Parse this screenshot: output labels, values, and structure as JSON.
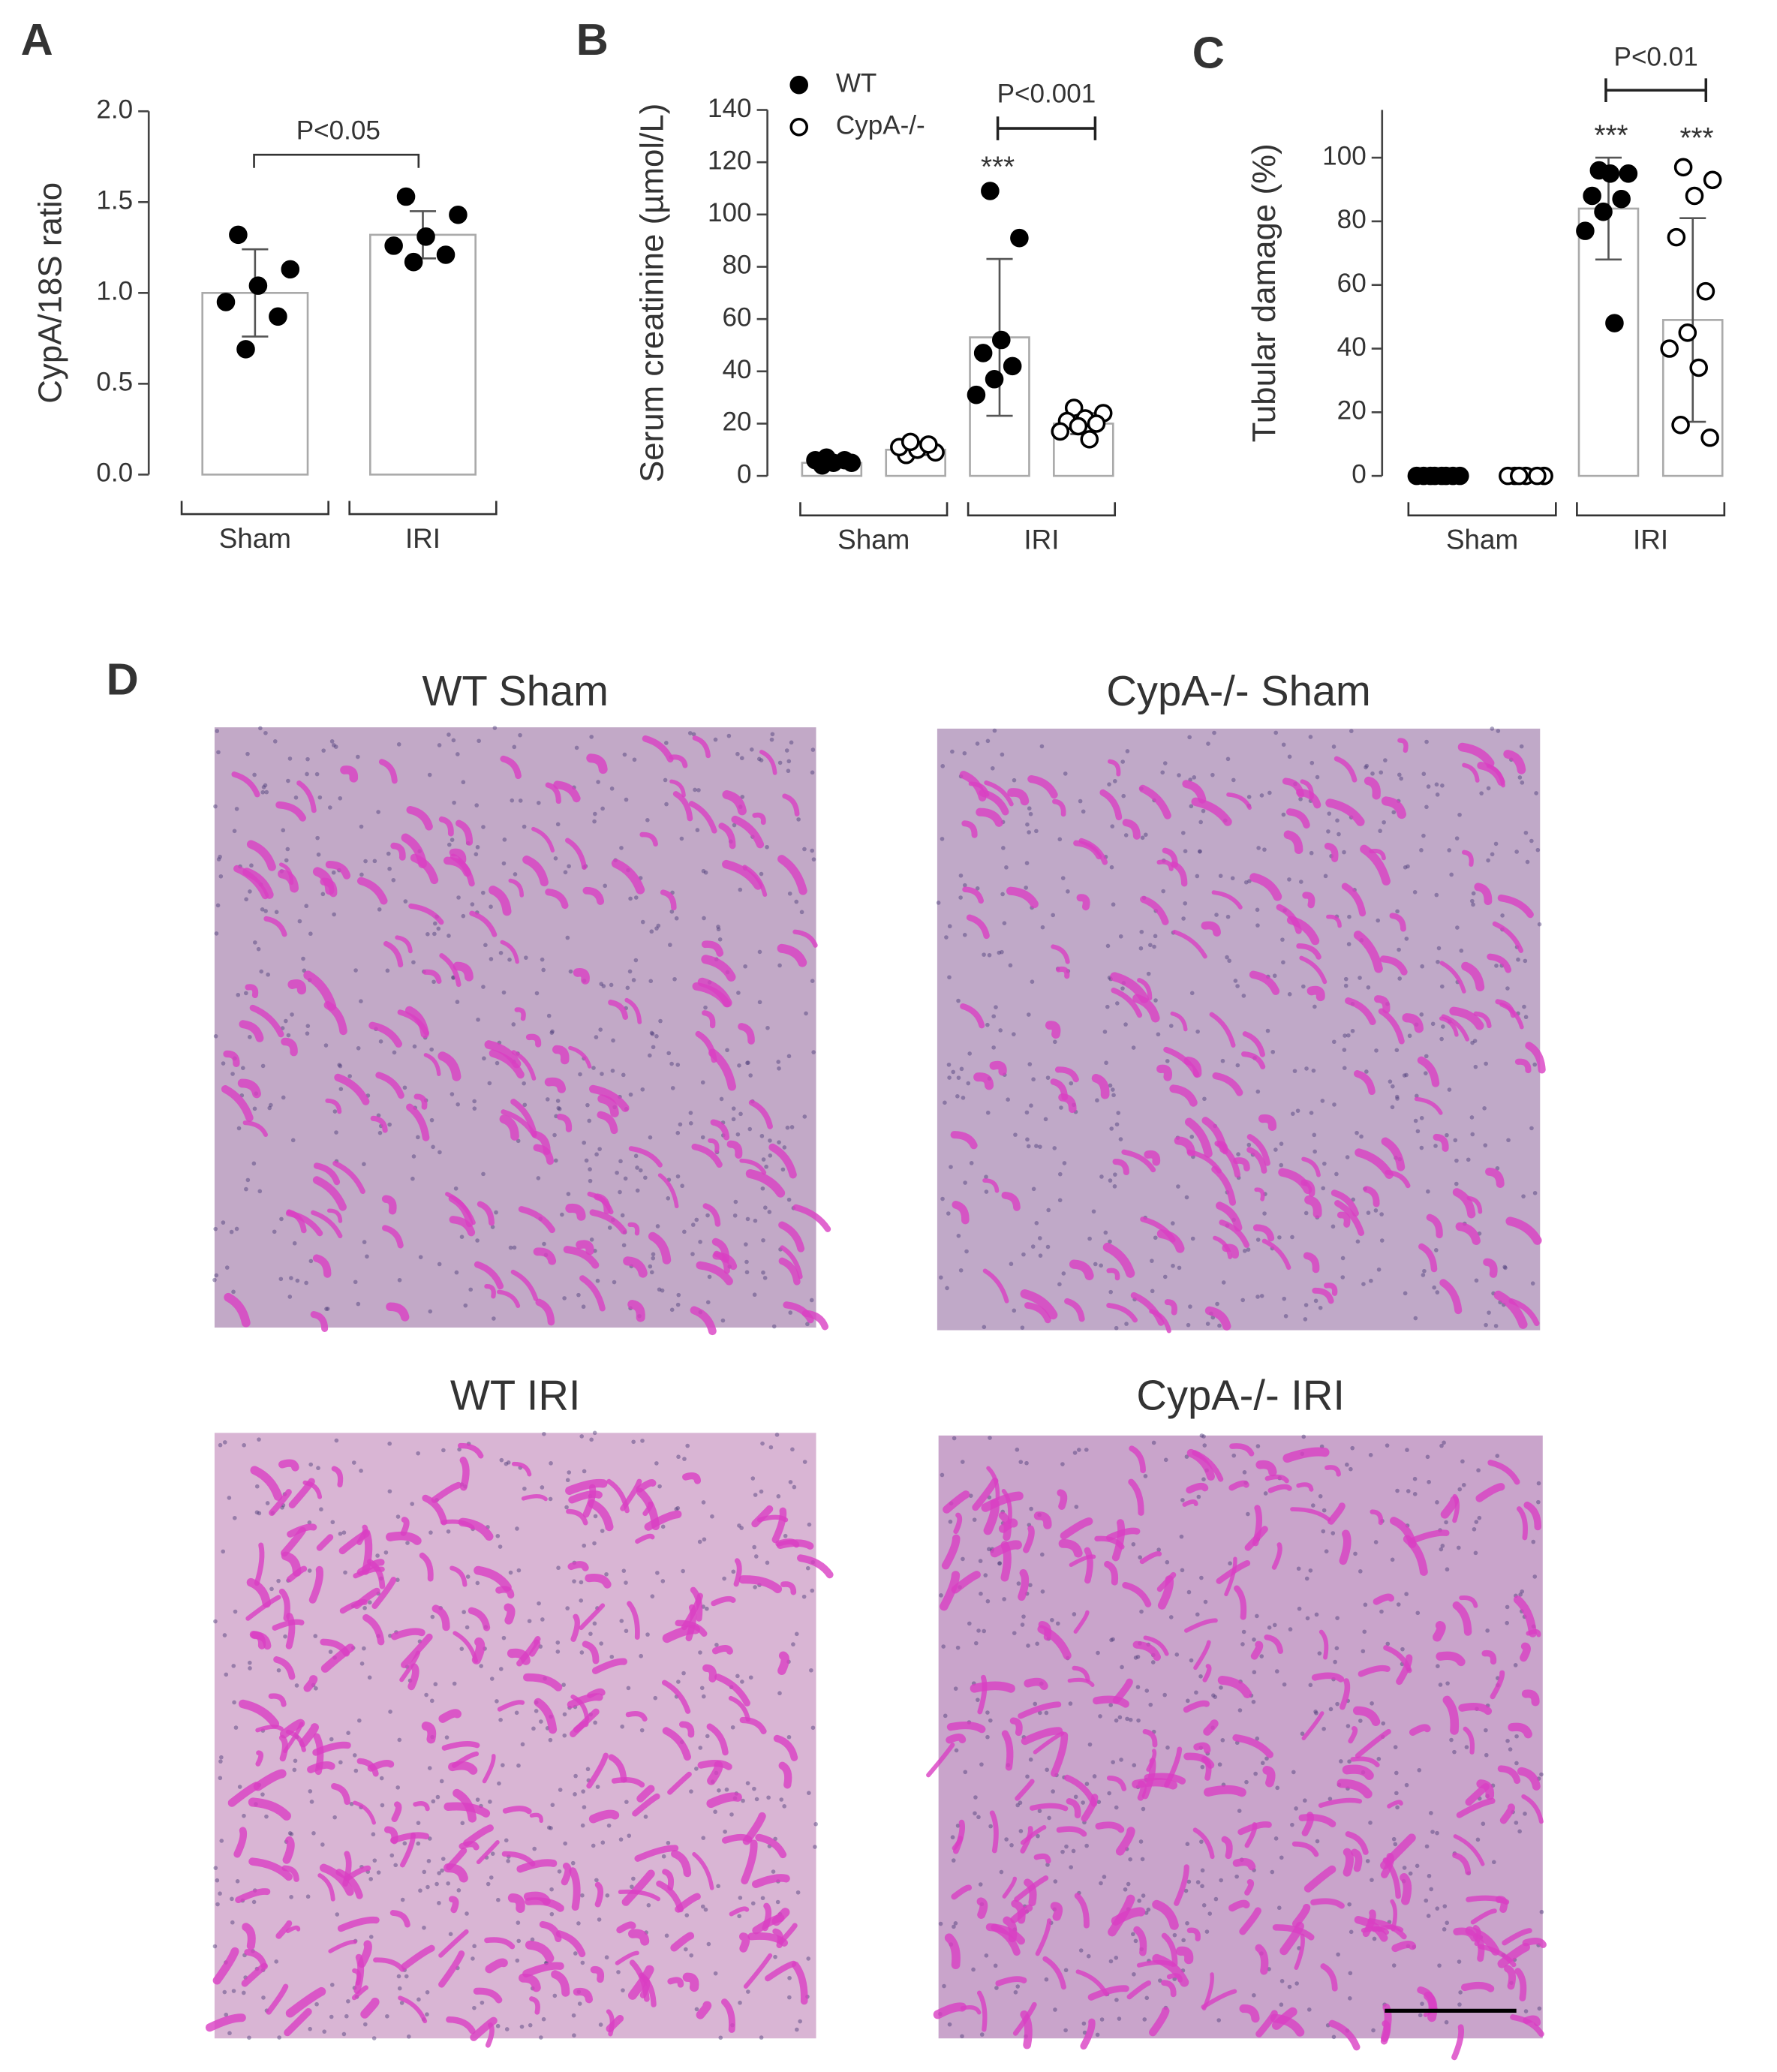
{
  "chart_data": [
    {
      "type": "bar",
      "panel": "A",
      "ylabel": "CypA/18S ratio",
      "categories": [
        "Sham",
        "IRI"
      ],
      "series": [
        {
          "color": "#000000",
          "marker": "filled",
          "values": [
            1.0,
            1.32
          ],
          "errors": [
            0.24,
            0.13
          ],
          "points": [
            [
              1.32,
              1.13,
              1.04,
              0.95,
              0.87,
              0.69
            ],
            [
              1.53,
              1.43,
              1.31,
              1.26,
              1.21,
              1.17
            ]
          ]
        }
      ],
      "ylim": [
        0,
        2.0
      ],
      "yticks": [
        {
          "value": 0,
          "label": "0.0"
        },
        {
          "value": 0.5,
          "label": "0.5"
        },
        {
          "value": 1.0,
          "label": "1.0"
        },
        {
          "value": 1.5,
          "label": "1.5"
        },
        {
          "value": 2.0,
          "label": "2.0"
        }
      ],
      "annotations": [
        {
          "text": "P<0.05"
        }
      ]
    },
    {
      "type": "bar",
      "panel": "B",
      "ylabel": "Serum creatinine (µmol/L)",
      "categories": [
        "Sham",
        "IRI"
      ],
      "series": [
        {
          "name": "WT",
          "color": "#000000",
          "marker": "filled",
          "values": [
            5,
            53
          ],
          "errors": [
            1,
            30
          ],
          "points": [
            [
              4,
              5,
              5,
              6,
              6,
              7
            ],
            [
              109,
              91,
              52,
              47,
              42,
              37,
              31
            ]
          ]
        },
        {
          "name": "CypA-/-",
          "color": "#000000",
          "marker": "open",
          "values": [
            10,
            20
          ],
          "errors": [
            2,
            4
          ],
          "points": [
            [
              8,
              9,
              10,
              11,
              12,
              13
            ],
            [
              26,
              24,
              22,
              21,
              20,
              19,
              17,
              14
            ]
          ]
        }
      ],
      "ylim": [
        0,
        140
      ],
      "yticks": [
        0,
        20,
        40,
        60,
        80,
        100,
        120,
        140
      ],
      "annotations": [
        {
          "text": "***"
        },
        {
          "text": "P<0.001"
        }
      ]
    },
    {
      "type": "bar",
      "panel": "C",
      "ylabel": "Tubular damage (%)",
      "categories": [
        "Sham",
        "IRI"
      ],
      "series": [
        {
          "color": "#000000",
          "marker": "filled",
          "values": [
            0,
            84
          ],
          "errors": [
            0,
            16
          ],
          "points": [
            [
              0,
              0,
              0,
              0,
              0,
              0,
              0,
              0
            ],
            [
              96,
              95,
              95,
              88,
              87,
              83,
              77,
              48
            ]
          ]
        },
        {
          "color": "#000000",
          "marker": "open",
          "values": [
            0,
            49
          ],
          "errors": [
            0,
            32
          ],
          "points": [
            [
              0,
              0,
              0,
              0,
              0,
              0
            ],
            [
              97,
              93,
              88,
              75,
              58,
              45,
              40,
              34,
              16,
              12
            ]
          ]
        }
      ],
      "ylim": [
        0,
        115
      ],
      "yticks": [
        0,
        20,
        40,
        60,
        80,
        100
      ],
      "annotations": [
        {
          "text": "***"
        },
        {
          "text": "***"
        },
        {
          "text": "P<0.01"
        }
      ]
    }
  ],
  "histology": {
    "panel": "D",
    "images": [
      {
        "title": "WT Sham"
      },
      {
        "title": "CypA-/- Sham"
      },
      {
        "title": "WT IRI"
      },
      {
        "title": "CypA-/- IRI"
      }
    ]
  }
}
